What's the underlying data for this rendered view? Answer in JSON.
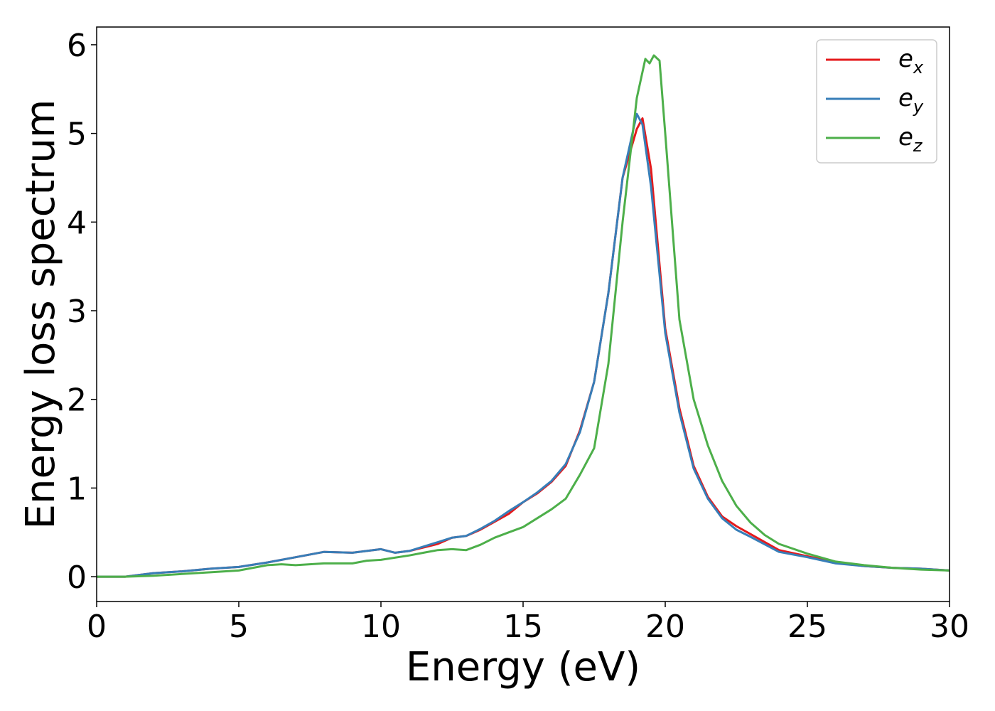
{
  "chart_data": {
    "type": "line",
    "title": "",
    "xlabel": "Energy (eV)",
    "ylabel": "Energy loss spectrum",
    "xlim": [
      0,
      30
    ],
    "ylim": [
      -0.28,
      6.2
    ],
    "xticks": [
      0,
      5,
      10,
      15,
      20,
      25,
      30
    ],
    "yticks": [
      0,
      1,
      2,
      3,
      4,
      5,
      6
    ],
    "grid": false,
    "legend_position": "top-right",
    "series": [
      {
        "name": "ex",
        "base": "e",
        "sub": "x",
        "color": "#e41a1c",
        "points": [
          [
            0,
            0
          ],
          [
            1,
            0
          ],
          [
            1.5,
            0.02
          ],
          [
            2,
            0.04
          ],
          [
            3,
            0.06
          ],
          [
            4,
            0.09
          ],
          [
            5,
            0.11
          ],
          [
            6,
            0.16
          ],
          [
            7,
            0.22
          ],
          [
            8,
            0.28
          ],
          [
            9,
            0.27
          ],
          [
            10,
            0.31
          ],
          [
            10.5,
            0.27
          ],
          [
            11,
            0.29
          ],
          [
            12,
            0.37
          ],
          [
            12.5,
            0.44
          ],
          [
            13,
            0.46
          ],
          [
            13.5,
            0.53
          ],
          [
            14,
            0.62
          ],
          [
            14.5,
            0.71
          ],
          [
            15,
            0.84
          ],
          [
            15.5,
            0.94
          ],
          [
            16,
            1.07
          ],
          [
            16.5,
            1.25
          ],
          [
            17,
            1.65
          ],
          [
            17.5,
            2.2
          ],
          [
            18,
            3.2
          ],
          [
            18.5,
            4.5
          ],
          [
            19,
            5.05
          ],
          [
            19.2,
            5.17
          ],
          [
            19.5,
            4.6
          ],
          [
            20,
            2.8
          ],
          [
            20.5,
            1.9
          ],
          [
            21,
            1.25
          ],
          [
            21.5,
            0.9
          ],
          [
            22,
            0.68
          ],
          [
            22.5,
            0.57
          ],
          [
            23,
            0.48
          ],
          [
            24,
            0.3
          ],
          [
            25,
            0.23
          ],
          [
            26,
            0.16
          ],
          [
            27,
            0.12
          ],
          [
            28,
            0.1
          ],
          [
            29,
            0.09
          ],
          [
            30,
            0.07
          ]
        ]
      },
      {
        "name": "ey",
        "base": "e",
        "sub": "y",
        "color": "#377eb8",
        "points": [
          [
            0,
            0
          ],
          [
            1,
            0
          ],
          [
            1.5,
            0.02
          ],
          [
            2,
            0.04
          ],
          [
            3,
            0.06
          ],
          [
            4,
            0.09
          ],
          [
            5,
            0.11
          ],
          [
            6,
            0.16
          ],
          [
            7,
            0.22
          ],
          [
            8,
            0.28
          ],
          [
            9,
            0.27
          ],
          [
            10,
            0.31
          ],
          [
            10.5,
            0.27
          ],
          [
            11,
            0.29
          ],
          [
            12,
            0.39
          ],
          [
            12.5,
            0.44
          ],
          [
            13,
            0.46
          ],
          [
            13.5,
            0.54
          ],
          [
            14,
            0.63
          ],
          [
            14.5,
            0.74
          ],
          [
            15,
            0.84
          ],
          [
            15.5,
            0.95
          ],
          [
            16,
            1.08
          ],
          [
            16.5,
            1.27
          ],
          [
            17,
            1.63
          ],
          [
            17.5,
            2.2
          ],
          [
            18,
            3.2
          ],
          [
            18.5,
            4.5
          ],
          [
            19,
            5.22
          ],
          [
            19.2,
            5.1
          ],
          [
            19.5,
            4.4
          ],
          [
            20,
            2.75
          ],
          [
            20.5,
            1.85
          ],
          [
            21,
            1.22
          ],
          [
            21.5,
            0.88
          ],
          [
            22,
            0.66
          ],
          [
            22.5,
            0.53
          ],
          [
            23,
            0.45
          ],
          [
            24,
            0.28
          ],
          [
            25,
            0.22
          ],
          [
            26,
            0.15
          ],
          [
            27,
            0.12
          ],
          [
            28,
            0.1
          ],
          [
            29,
            0.09
          ],
          [
            30,
            0.07
          ]
        ]
      },
      {
        "name": "ez",
        "base": "e",
        "sub": "z",
        "color": "#4daf4a",
        "points": [
          [
            0,
            0
          ],
          [
            1,
            0
          ],
          [
            2,
            0.01
          ],
          [
            3,
            0.03
          ],
          [
            4,
            0.05
          ],
          [
            5,
            0.07
          ],
          [
            6,
            0.13
          ],
          [
            6.5,
            0.14
          ],
          [
            7,
            0.13
          ],
          [
            8,
            0.15
          ],
          [
            9,
            0.15
          ],
          [
            9.5,
            0.18
          ],
          [
            10,
            0.19
          ],
          [
            11,
            0.24
          ],
          [
            11.5,
            0.27
          ],
          [
            12,
            0.3
          ],
          [
            12.5,
            0.31
          ],
          [
            13,
            0.3
          ],
          [
            13.5,
            0.36
          ],
          [
            14,
            0.44
          ],
          [
            14.5,
            0.5
          ],
          [
            15,
            0.56
          ],
          [
            15.5,
            0.66
          ],
          [
            16,
            0.76
          ],
          [
            16.5,
            0.88
          ],
          [
            17,
            1.15
          ],
          [
            17.5,
            1.45
          ],
          [
            18,
            2.4
          ],
          [
            18.5,
            4.0
          ],
          [
            19,
            5.4
          ],
          [
            19.3,
            5.84
          ],
          [
            19.45,
            5.79
          ],
          [
            19.6,
            5.88
          ],
          [
            19.8,
            5.82
          ],
          [
            20,
            5.0
          ],
          [
            20.5,
            2.9
          ],
          [
            21,
            2.0
          ],
          [
            21.5,
            1.48
          ],
          [
            22,
            1.08
          ],
          [
            22.5,
            0.8
          ],
          [
            23,
            0.61
          ],
          [
            23.5,
            0.47
          ],
          [
            24,
            0.37
          ],
          [
            25,
            0.26
          ],
          [
            26,
            0.17
          ],
          [
            27,
            0.13
          ],
          [
            28,
            0.1
          ],
          [
            29,
            0.08
          ],
          [
            30,
            0.07
          ]
        ]
      }
    ]
  }
}
